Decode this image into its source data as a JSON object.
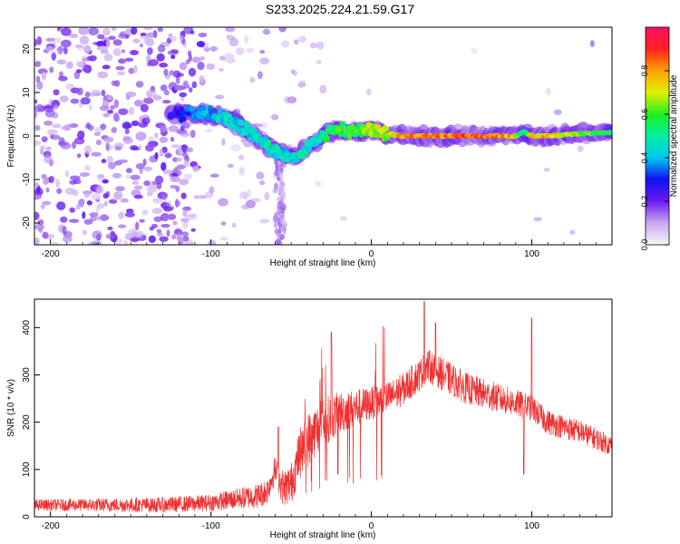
{
  "figure_title": "S233.2025.224.21.59.G17",
  "chart_data": [
    {
      "type": "heatmap",
      "title": "S233.2025.224.21.59.G17",
      "xlabel": "Height of straight line (km)",
      "ylabel": "Frequency (Hz)",
      "xlim": [
        -210,
        150
      ],
      "ylim": [
        -25,
        25
      ],
      "xticks": [
        -200,
        -100,
        0,
        100
      ],
      "xtick_labels": [
        "-200",
        "-100",
        "0",
        "100"
      ],
      "yticks": [
        -20,
        -10,
        0,
        10,
        20
      ],
      "ytick_labels": [
        "-20",
        "-10",
        "0",
        "10",
        "20"
      ],
      "colorbar": {
        "label": "Normalized spectral amplitude",
        "range": [
          0,
          1
        ],
        "ticks": [
          0.0,
          0.2,
          0.4,
          0.6,
          0.8
        ],
        "tick_labels": [
          "0.0",
          "0.2",
          "0.4",
          "0.6",
          "0.8"
        ],
        "colormap": [
          "#f8f8f8",
          "#c9a8f0",
          "#6b1bf0",
          "#1010f0",
          "#00c8f0",
          "#00f0a0",
          "#20f020",
          "#e0f000",
          "#ffa000",
          "#ff2020",
          "#ff1060"
        ]
      },
      "ridge": {
        "x": [
          -120,
          -110,
          -100,
          -90,
          -80,
          -70,
          -62,
          -55,
          -48,
          -42,
          -35,
          -28,
          -20,
          -10,
          0,
          10,
          20,
          40,
          60,
          80,
          90,
          95,
          100,
          110,
          130,
          150
        ],
        "frequency": [
          5,
          5.5,
          5,
          4,
          2,
          -1,
          -3,
          -4,
          -5,
          -3,
          -1.5,
          0.5,
          1.5,
          1,
          1.2,
          0.5,
          0,
          0,
          0,
          0,
          0,
          1,
          0,
          0,
          0.5,
          0.8
        ],
        "amplitude": [
          0.3,
          0.4,
          0.45,
          0.5,
          0.5,
          0.5,
          0.55,
          0.5,
          0.5,
          0.55,
          0.5,
          0.6,
          0.65,
          0.7,
          0.75,
          0.8,
          0.9,
          0.95,
          1.0,
          0.95,
          0.85,
          0.5,
          0.85,
          0.9,
          0.75,
          0.6
        ]
      }
    },
    {
      "type": "line",
      "xlabel": "Height of straight line (km)",
      "ylabel": "SNR (10 * v/v)",
      "xlim": [
        -210,
        150
      ],
      "ylim": [
        0,
        460
      ],
      "xticks": [
        -200,
        -100,
        0,
        100
      ],
      "xtick_labels": [
        "-200",
        "-100",
        "0",
        "100"
      ],
      "yticks": [
        0,
        100,
        200,
        300,
        400
      ],
      "ytick_labels": [
        "0",
        "100",
        "200",
        "300",
        "400"
      ],
      "color": "#f03030",
      "envelope": {
        "x": [
          -210,
          -190,
          -170,
          -150,
          -130,
          -110,
          -100,
          -90,
          -80,
          -70,
          -65,
          -60,
          -55,
          -50,
          -45,
          -40,
          -35,
          -30,
          -25,
          -20,
          -10,
          0,
          10,
          20,
          30,
          35,
          40,
          50,
          60,
          70,
          80,
          90,
          95,
          100,
          110,
          120,
          130,
          140,
          150
        ],
        "y": [
          25,
          25,
          25,
          25,
          25,
          28,
          30,
          35,
          40,
          45,
          55,
          100,
          60,
          70,
          130,
          160,
          180,
          200,
          210,
          220,
          230,
          240,
          250,
          270,
          300,
          320,
          310,
          290,
          270,
          260,
          250,
          240,
          235,
          230,
          200,
          190,
          180,
          165,
          150
        ]
      },
      "noise": {
        "x": [
          -210,
          -100,
          -60,
          -40,
          -20,
          0,
          50,
          100,
          150
        ],
        "amplitude": [
          12,
          18,
          30,
          60,
          45,
          35,
          35,
          28,
          22
        ]
      },
      "spikes": [
        {
          "x": -58,
          "y": 190
        },
        {
          "x": -25,
          "y": 390
        },
        {
          "x": 33,
          "y": 455
        },
        {
          "x": 40,
          "y": 410
        },
        {
          "x": 95,
          "y": 90
        },
        {
          "x": 100,
          "y": 420
        }
      ]
    }
  ]
}
